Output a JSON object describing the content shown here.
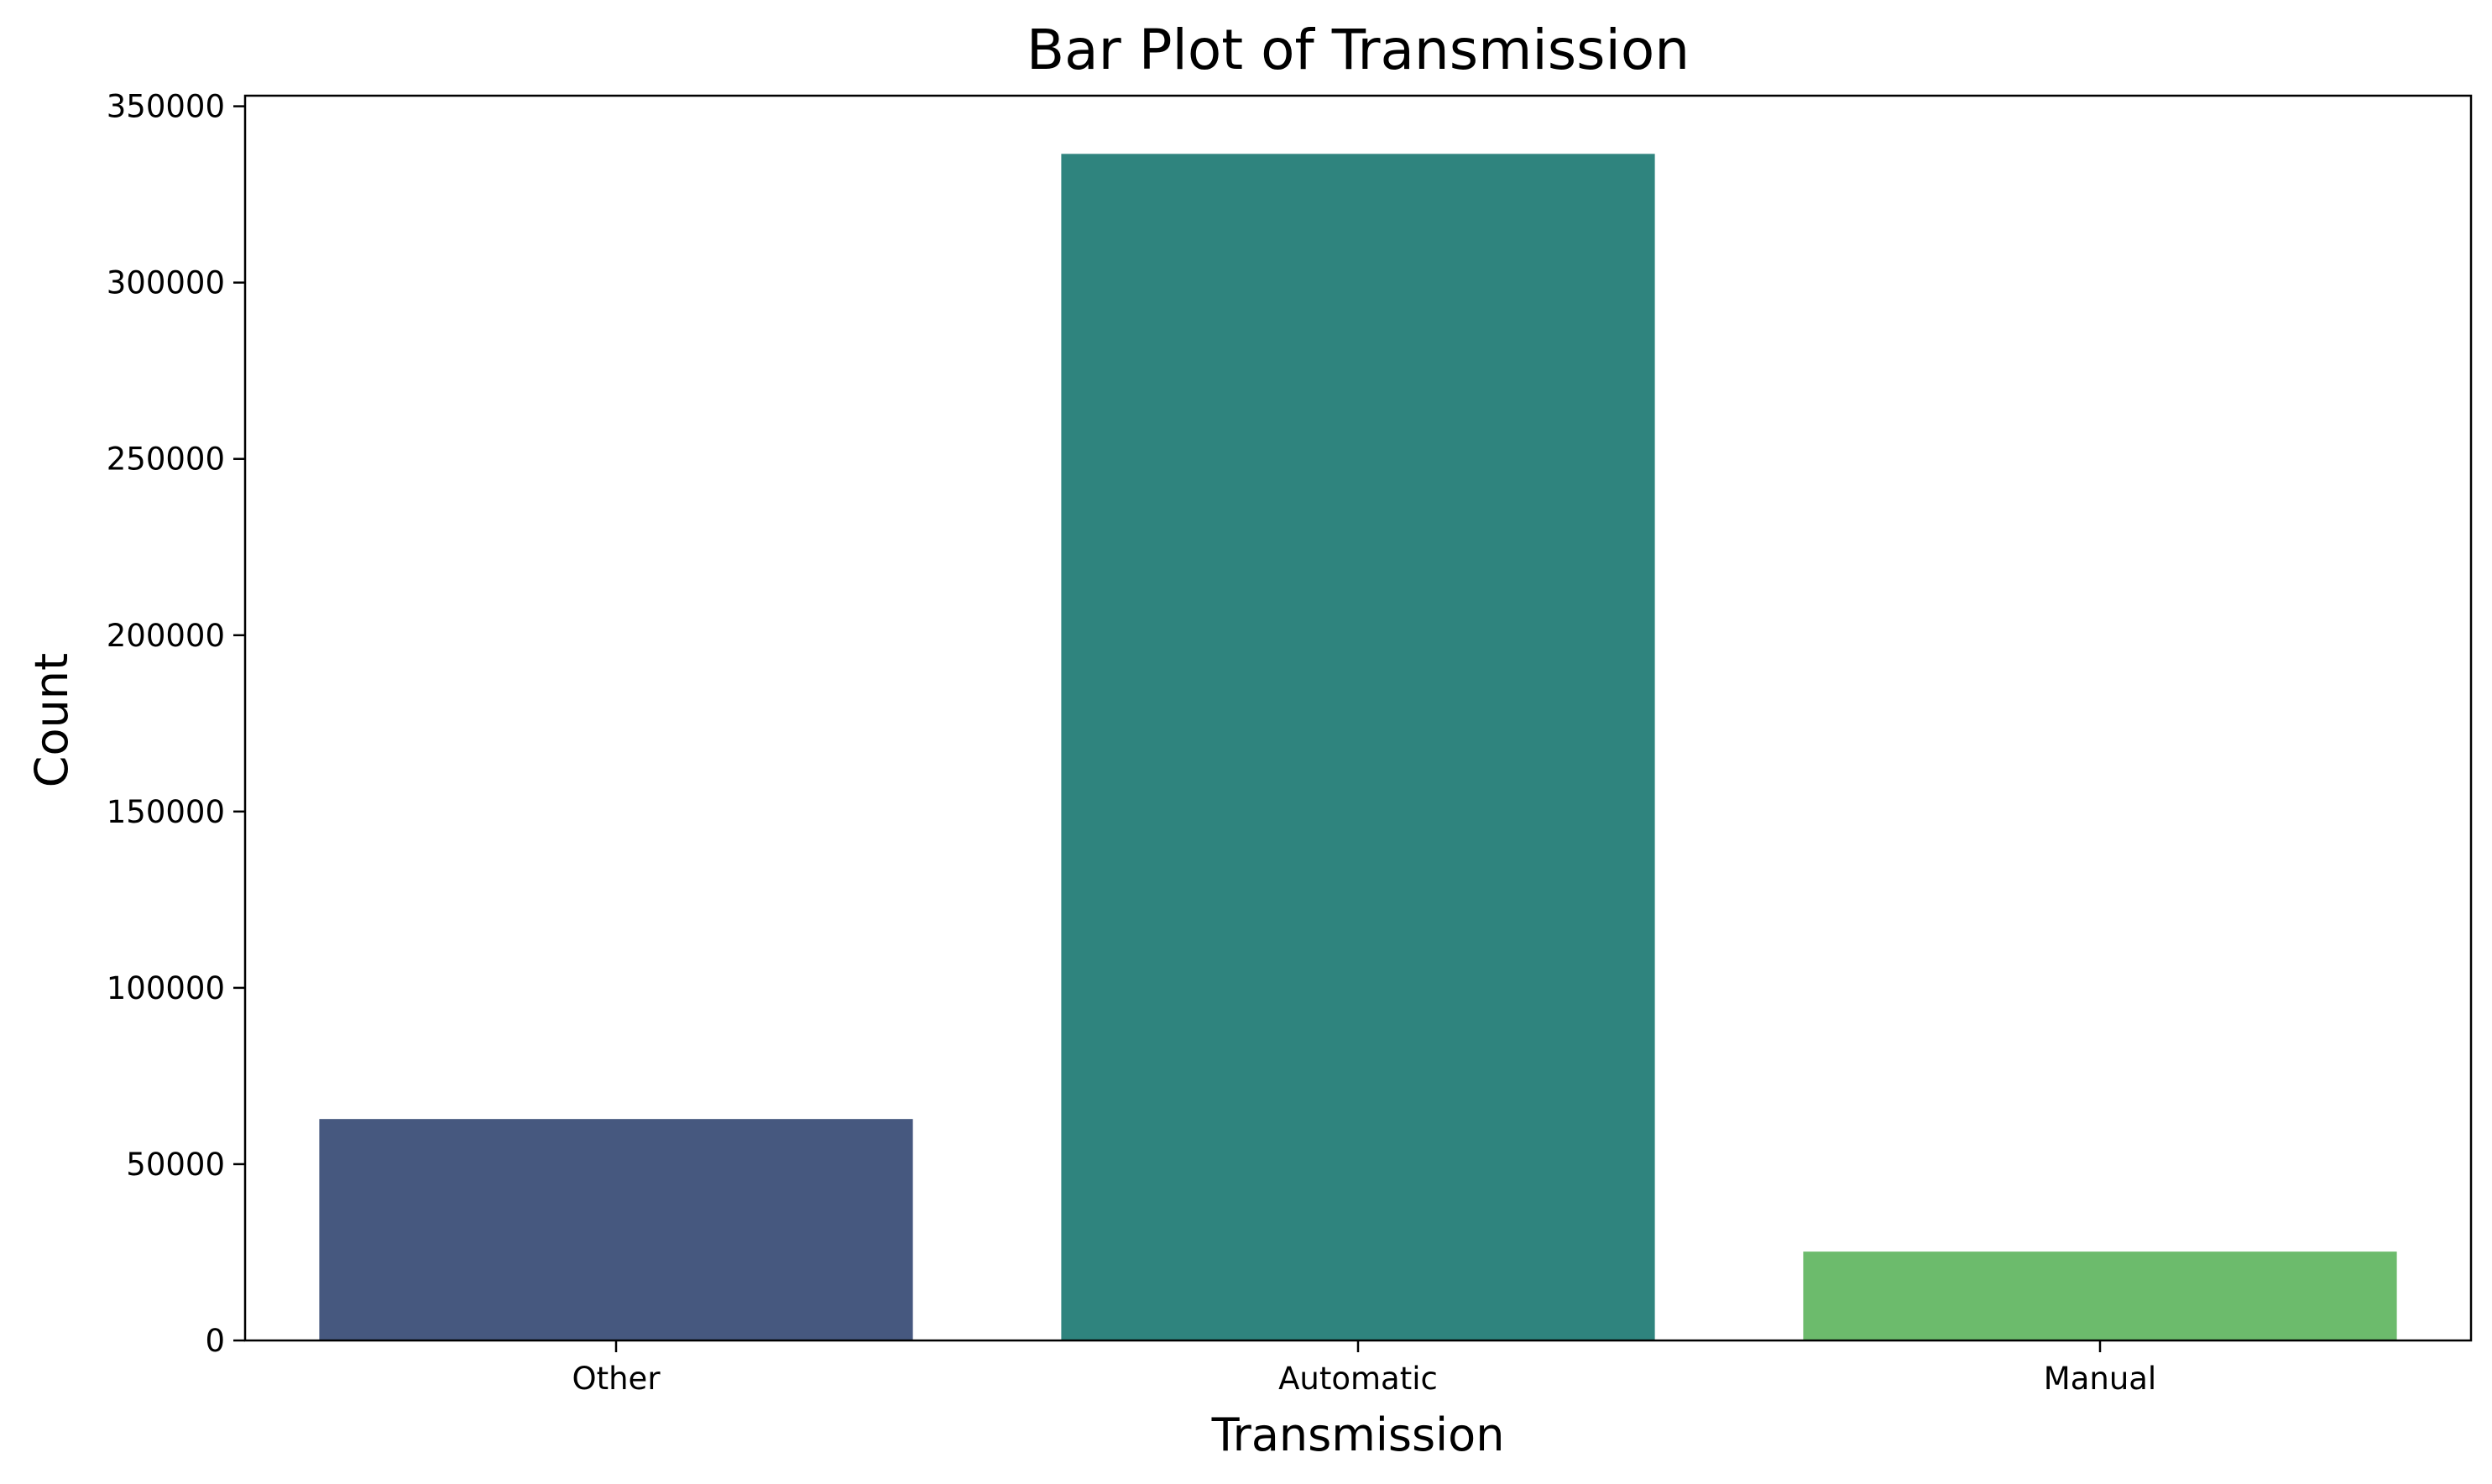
{
  "chart_data": {
    "type": "bar",
    "title": "Bar Plot of Transmission",
    "xlabel": "Transmission",
    "ylabel": "Count",
    "categories": [
      "Other",
      "Automatic",
      "Manual"
    ],
    "values": [
      62800,
      336500,
      25200
    ],
    "colors": [
      "#46587f",
      "#2f847e",
      "#6cbb6c"
    ],
    "ylim": [
      0,
      353000
    ],
    "yticks": [
      0,
      50000,
      100000,
      150000,
      200000,
      250000,
      300000,
      350000
    ],
    "ytick_labels": [
      "0",
      "50000",
      "100000",
      "150000",
      "200000",
      "250000",
      "300000",
      "350000"
    ],
    "grid": false,
    "legend": "none"
  }
}
